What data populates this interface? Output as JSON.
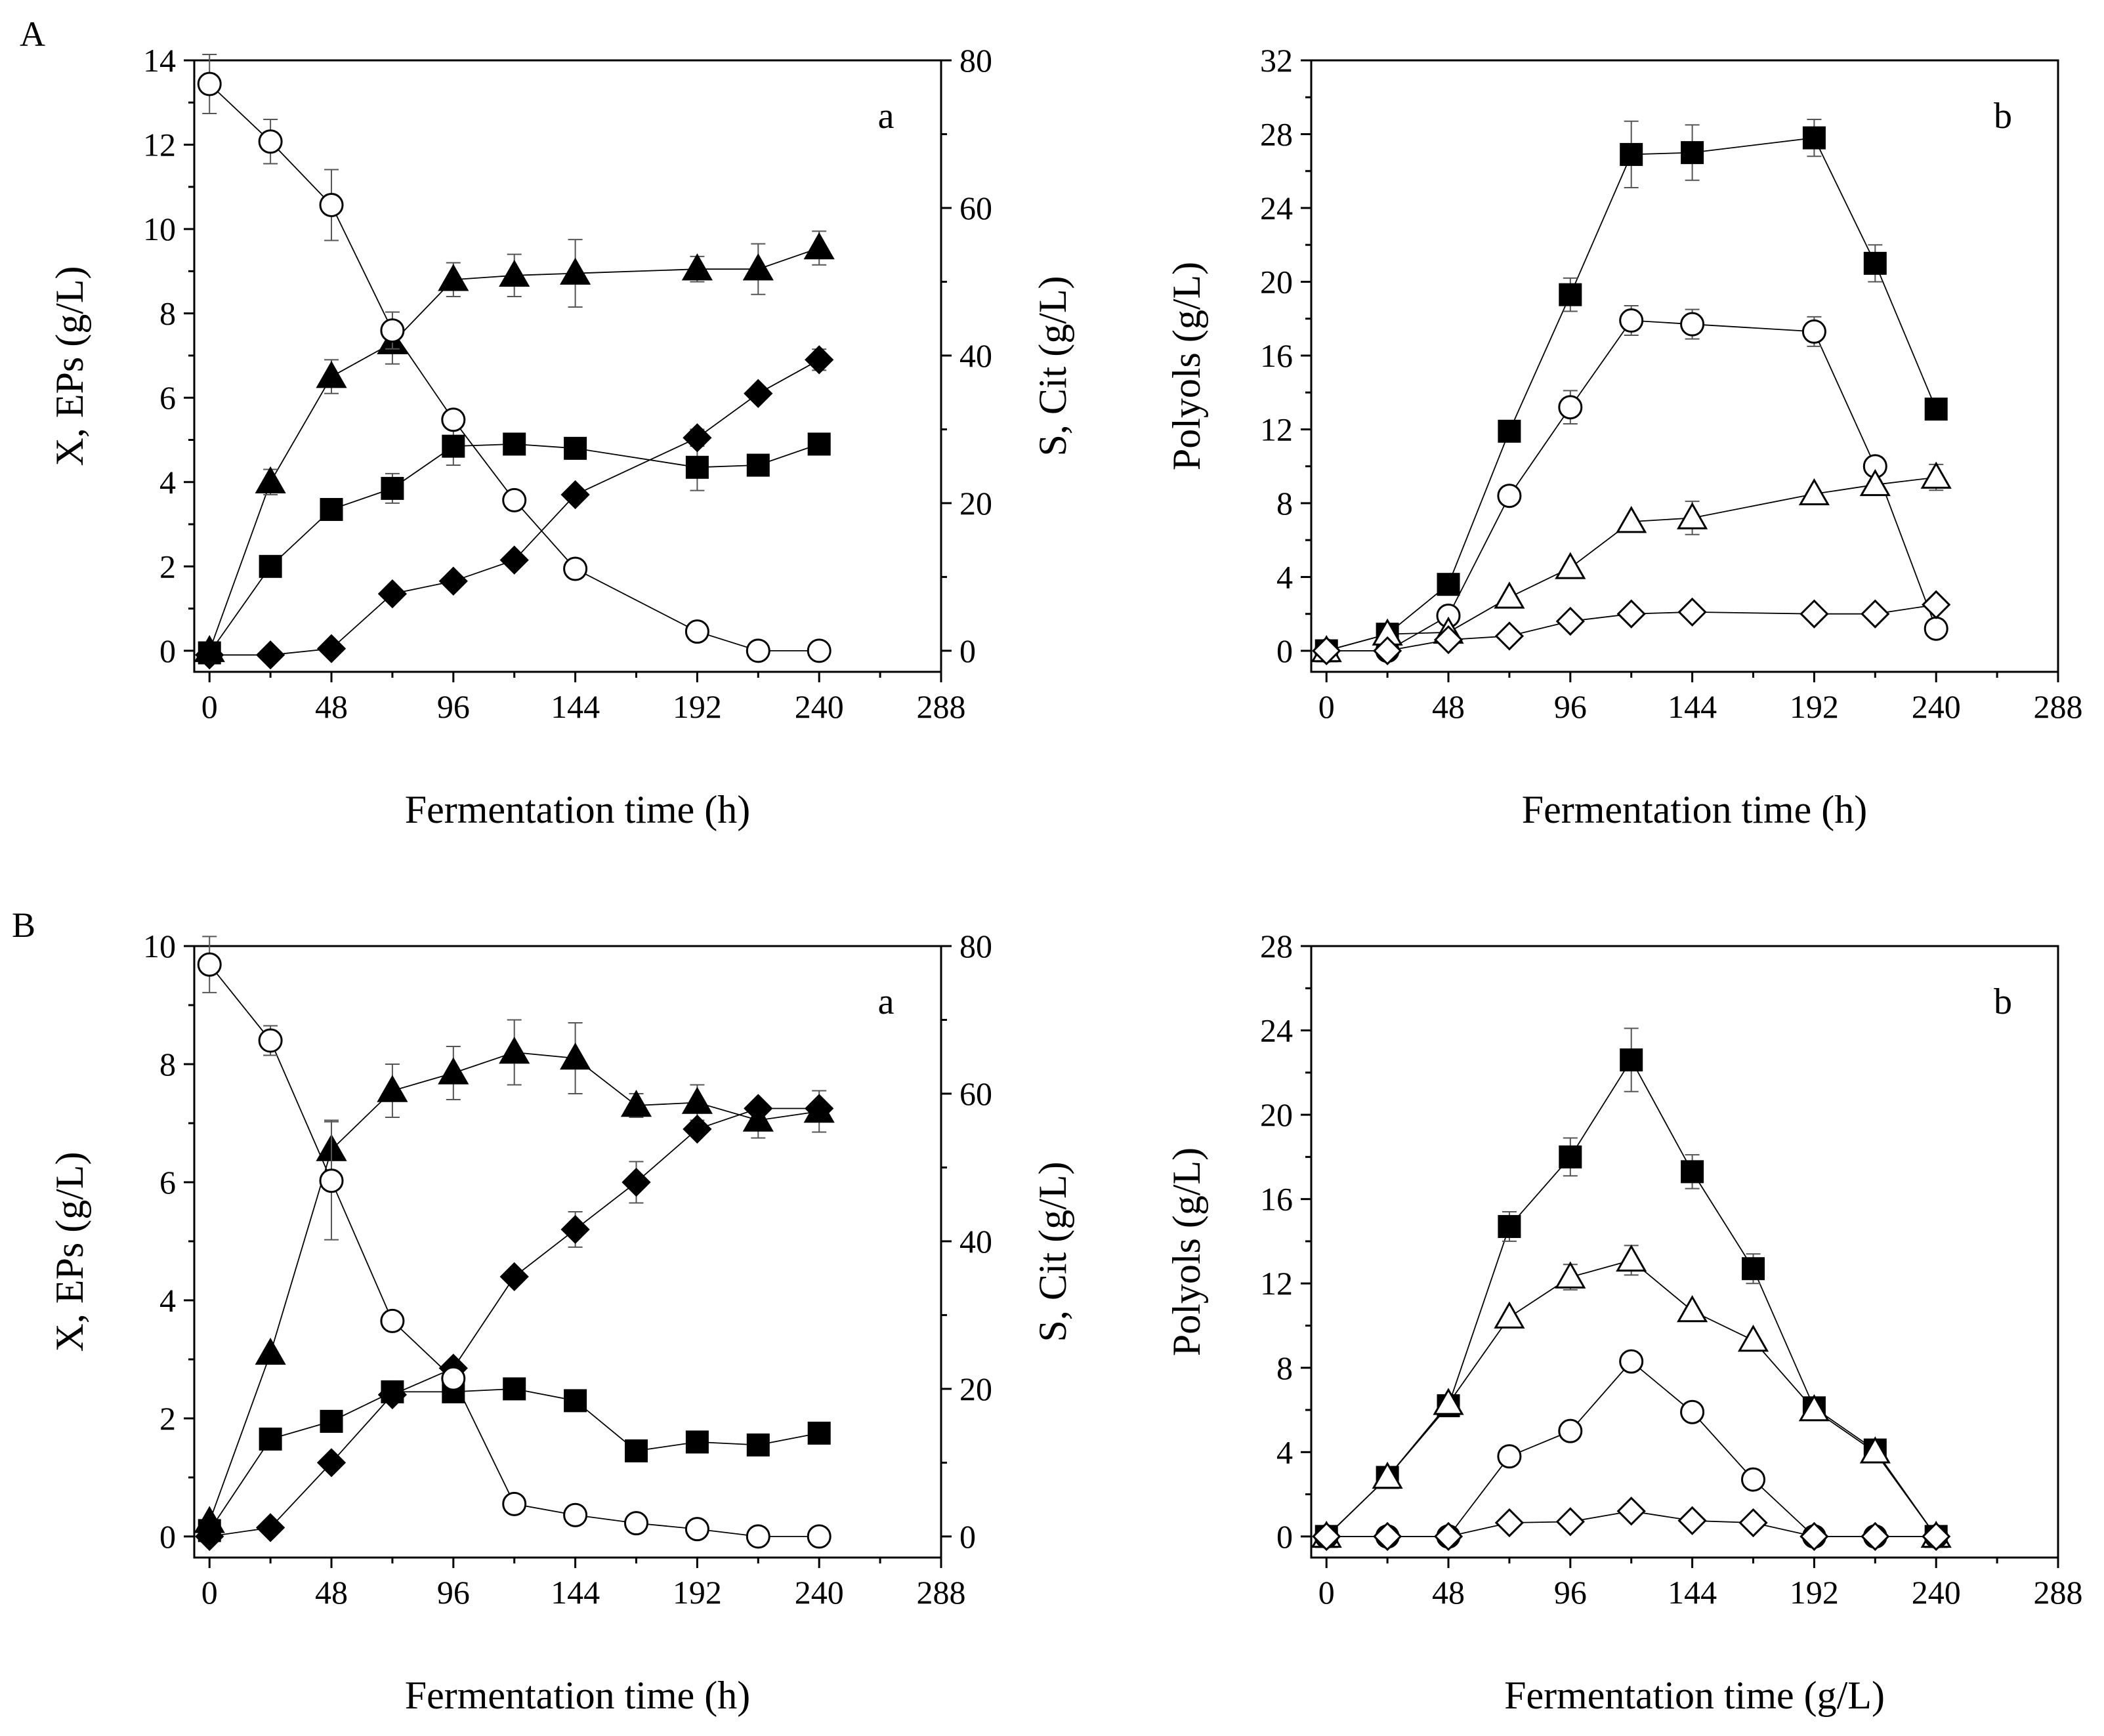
{
  "figure": {
    "panels": [
      {
        "id": "A",
        "label": "A"
      },
      {
        "id": "B",
        "label": "B"
      }
    ]
  },
  "chart_data": [
    {
      "id": "A-a",
      "type": "scatter",
      "panel": "A",
      "sublabel": "a",
      "xlabel": "Fermentation time (h)",
      "ylabel": "X, EPs (g/L)",
      "y2label": "S, Cit (g/L)",
      "xlim": [
        -6,
        288
      ],
      "ylim": [
        -0.5,
        14
      ],
      "y2lim": [
        -2.857,
        80
      ],
      "xticks": [
        0,
        48,
        96,
        144,
        192,
        240,
        288
      ],
      "yticks": [
        0,
        2,
        4,
        6,
        8,
        10,
        12,
        14
      ],
      "y2ticks": [
        0,
        20,
        40,
        60,
        80
      ],
      "series": [
        {
          "name": "triangle-filled",
          "marker": "triangle",
          "filled": true,
          "axis": "left",
          "x": [
            0,
            24,
            48,
            72,
            96,
            120,
            144,
            192,
            216,
            240
          ],
          "y": [
            0.0,
            4.0,
            6.5,
            7.3,
            8.8,
            8.9,
            8.95,
            9.05,
            9.05,
            9.55
          ],
          "err": [
            0.1,
            0.3,
            0.4,
            0.5,
            0.4,
            0.5,
            0.8,
            0.3,
            0.6,
            0.4
          ]
        },
        {
          "name": "square-filled",
          "marker": "square",
          "filled": true,
          "axis": "left",
          "x": [
            0,
            24,
            48,
            72,
            96,
            120,
            144,
            192,
            216,
            240
          ],
          "y": [
            -0.05,
            2.0,
            3.35,
            3.85,
            4.85,
            4.9,
            4.8,
            4.35,
            4.4,
            4.9
          ],
          "err": [
            0,
            0,
            0.2,
            0.35,
            0.45,
            0,
            0,
            0.55,
            0,
            0
          ]
        },
        {
          "name": "diamond-filled",
          "marker": "diamond",
          "filled": true,
          "axis": "left",
          "x": [
            0,
            24,
            48,
            72,
            96,
            120,
            144,
            192,
            216,
            240
          ],
          "y": [
            -0.1,
            -0.1,
            0.05,
            1.35,
            1.65,
            2.15,
            3.7,
            5.05,
            6.1,
            6.9
          ],
          "err": [
            0,
            0,
            0,
            0,
            0,
            0,
            0,
            0.2,
            0,
            0.25
          ]
        },
        {
          "name": "circle-open",
          "marker": "circle",
          "filled": false,
          "axis": "right",
          "x": [
            0,
            24,
            48,
            72,
            96,
            120,
            144,
            192,
            216,
            240
          ],
          "y": [
            76.8,
            69.0,
            60.4,
            43.4,
            31.3,
            20.4,
            11.1,
            2.6,
            0.0,
            0.0
          ],
          "err": [
            4.0,
            3.0,
            4.8,
            2.5,
            0,
            0,
            0,
            0,
            0,
            0
          ]
        }
      ]
    },
    {
      "id": "A-b",
      "type": "scatter",
      "panel": "A",
      "sublabel": "b",
      "xlabel": "Fermentation time (h)",
      "ylabel": "Polyols (g/L)",
      "xlim": [
        -6,
        288
      ],
      "ylim": [
        -1.14,
        32
      ],
      "xticks": [
        0,
        48,
        96,
        144,
        192,
        240,
        288
      ],
      "yticks": [
        0,
        4,
        8,
        12,
        16,
        20,
        24,
        28,
        32
      ],
      "series": [
        {
          "name": "square-filled",
          "marker": "square",
          "filled": true,
          "x": [
            0,
            24,
            48,
            72,
            96,
            120,
            144,
            192,
            216,
            240
          ],
          "y": [
            0.0,
            0.9,
            3.6,
            11.9,
            19.3,
            26.9,
            27.0,
            27.8,
            21.0,
            13.1
          ],
          "err": [
            0,
            0,
            0,
            0,
            0.9,
            1.8,
            1.5,
            1.0,
            1.0,
            0
          ]
        },
        {
          "name": "circle-open",
          "marker": "circle",
          "filled": false,
          "x": [
            0,
            24,
            48,
            72,
            96,
            120,
            144,
            192,
            216,
            240
          ],
          "y": [
            0.0,
            0.0,
            1.9,
            8.4,
            13.2,
            17.9,
            17.7,
            17.3,
            10.0,
            1.2
          ],
          "err": [
            0,
            0,
            0,
            0,
            0.9,
            0.8,
            0.8,
            0.8,
            0,
            0
          ]
        },
        {
          "name": "triangle-open",
          "marker": "triangle",
          "filled": false,
          "x": [
            0,
            24,
            48,
            72,
            96,
            120,
            144,
            192,
            216,
            240
          ],
          "y": [
            0.0,
            0.9,
            1.0,
            2.9,
            4.5,
            7.0,
            7.2,
            8.5,
            9.0,
            9.4
          ],
          "err": [
            0,
            0,
            0,
            0,
            0,
            0,
            0.9,
            0,
            0,
            0.7
          ]
        },
        {
          "name": "diamond-open",
          "marker": "diamond",
          "filled": false,
          "x": [
            0,
            24,
            48,
            72,
            96,
            120,
            144,
            192,
            216,
            240
          ],
          "y": [
            0.0,
            0.0,
            0.6,
            0.8,
            1.6,
            2.0,
            2.1,
            2.0,
            2.0,
            2.5
          ],
          "err": [
            0,
            0,
            0,
            0,
            0,
            0,
            0,
            0,
            0,
            0
          ]
        }
      ]
    },
    {
      "id": "B-a",
      "type": "scatter",
      "panel": "B",
      "sublabel": "a",
      "xlabel": "Fermentation time (h)",
      "ylabel": "X, EPs (g/L)",
      "y2label": "S, Cit (g/L)",
      "xlim": [
        -6,
        288
      ],
      "ylim": [
        -0.357,
        10
      ],
      "y2lim": [
        -2.857,
        80
      ],
      "xticks": [
        0,
        48,
        96,
        144,
        192,
        240,
        288
      ],
      "yticks": [
        0,
        2,
        4,
        6,
        8,
        10
      ],
      "y2ticks": [
        0,
        20,
        40,
        60,
        80
      ],
      "series": [
        {
          "name": "triangle-filled",
          "marker": "triangle",
          "filled": true,
          "axis": "left",
          "x": [
            0,
            24,
            48,
            72,
            96,
            120,
            144,
            168,
            192,
            216,
            240
          ],
          "y": [
            0.25,
            3.1,
            6.55,
            7.55,
            7.85,
            8.2,
            8.1,
            7.3,
            7.35,
            7.05,
            7.2
          ],
          "err": [
            0,
            0,
            0.5,
            0.45,
            0.45,
            0.55,
            0.6,
            0.2,
            0.3,
            0.3,
            0.35
          ]
        },
        {
          "name": "square-filled",
          "marker": "square",
          "filled": true,
          "axis": "left",
          "x": [
            0,
            24,
            48,
            72,
            96,
            120,
            144,
            168,
            192,
            216,
            240
          ],
          "y": [
            0.1,
            1.65,
            1.95,
            2.45,
            2.45,
            2.5,
            2.3,
            1.45,
            1.6,
            1.55,
            1.75
          ],
          "err": [
            0,
            0,
            0,
            0,
            0,
            0,
            0,
            0,
            0,
            0,
            0
          ]
        },
        {
          "name": "diamond-filled",
          "marker": "diamond",
          "filled": true,
          "axis": "left",
          "x": [
            0,
            24,
            48,
            72,
            96,
            120,
            144,
            168,
            192,
            216,
            240
          ],
          "y": [
            0.0,
            0.15,
            1.25,
            2.4,
            2.85,
            4.4,
            5.2,
            6.0,
            6.9,
            7.25,
            7.25
          ],
          "err": [
            0,
            0,
            0,
            0,
            0,
            0,
            0.3,
            0.35,
            0,
            0,
            0
          ]
        },
        {
          "name": "circle-open",
          "marker": "circle",
          "filled": false,
          "axis": "right",
          "x": [
            0,
            24,
            48,
            72,
            96,
            120,
            144,
            168,
            192,
            216,
            240
          ],
          "y": [
            77.5,
            67.2,
            48.2,
            29.2,
            21.4,
            4.4,
            2.9,
            1.8,
            1.0,
            0.0,
            0.0
          ],
          "err": [
            3.8,
            2.0,
            8.0,
            0,
            0,
            0,
            0,
            0,
            0,
            0,
            0
          ]
        }
      ]
    },
    {
      "id": "B-b",
      "type": "scatter",
      "panel": "B",
      "sublabel": "b",
      "xlabel": "Fermentation time (g/L)",
      "ylabel": "Polyols (g/L)",
      "xlim": [
        -6,
        288
      ],
      "ylim": [
        -1.0,
        28
      ],
      "xticks": [
        0,
        48,
        96,
        144,
        192,
        240,
        288
      ],
      "yticks": [
        0,
        4,
        8,
        12,
        16,
        20,
        24,
        28
      ],
      "series": [
        {
          "name": "square-filled",
          "marker": "square",
          "filled": true,
          "x": [
            0,
            24,
            48,
            72,
            96,
            120,
            144,
            168,
            192,
            216,
            240
          ],
          "y": [
            0.0,
            2.8,
            6.2,
            14.7,
            18.0,
            22.6,
            17.3,
            12.7,
            6.1,
            4.1,
            0.0
          ],
          "err": [
            0,
            0,
            0,
            0.7,
            0.9,
            1.5,
            0.8,
            0.7,
            0,
            0,
            0
          ]
        },
        {
          "name": "triangle-open",
          "marker": "triangle",
          "filled": false,
          "x": [
            0,
            24,
            48,
            72,
            96,
            120,
            144,
            168,
            192,
            216,
            240
          ],
          "y": [
            0.0,
            2.8,
            6.3,
            10.4,
            12.3,
            13.1,
            10.7,
            9.3,
            6.0,
            4.0,
            0.0
          ],
          "err": [
            0,
            0,
            0,
            0,
            0.6,
            0.7,
            0,
            0,
            0,
            0,
            0
          ]
        },
        {
          "name": "circle-open",
          "marker": "circle",
          "filled": false,
          "x": [
            0,
            24,
            48,
            72,
            96,
            120,
            144,
            168,
            192,
            216,
            240
          ],
          "y": [
            0.0,
            0.0,
            0.0,
            3.8,
            5.0,
            8.3,
            5.9,
            2.7,
            0.0,
            0.0,
            0.0
          ],
          "err": [
            0,
            0,
            0,
            0,
            0,
            0,
            0,
            0,
            0,
            0,
            0
          ]
        },
        {
          "name": "diamond-open",
          "marker": "diamond",
          "filled": false,
          "x": [
            0,
            24,
            48,
            72,
            96,
            120,
            144,
            168,
            192,
            216,
            240
          ],
          "y": [
            0.0,
            0.0,
            0.0,
            0.65,
            0.7,
            1.2,
            0.75,
            0.65,
            0.0,
            0.0,
            0.0
          ],
          "err": [
            0,
            0,
            0,
            0,
            0,
            0,
            0,
            0,
            0,
            0,
            0
          ]
        }
      ]
    }
  ]
}
